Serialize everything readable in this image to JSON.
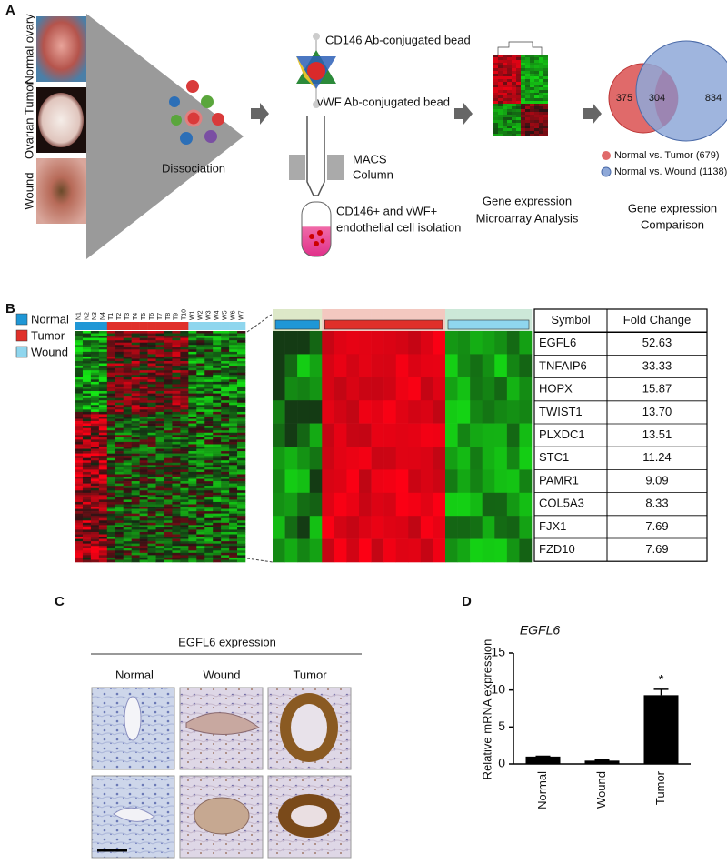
{
  "panel_labels": [
    "A",
    "B",
    "C",
    "D"
  ],
  "workflow": {
    "tissues": [
      "Normal ovary",
      "Ovarian Tumor",
      "Wound"
    ],
    "dissociation": "Dissociation",
    "cd146_bead": "CD146 Ab-conjugated bead",
    "vwf_bead": "vWF Ab-conjugated bead",
    "macs": [
      "MACS",
      "Column"
    ],
    "isolation": [
      "CD146+ and vWF+",
      "endothelial cell isolation"
    ],
    "microarray": [
      "Gene expression",
      "Microarray Analysis"
    ],
    "comparison": [
      "Gene expression",
      "Comparison"
    ]
  },
  "venn": {
    "tumor_only": "375",
    "overlap": "304",
    "wound_only": "834",
    "legend": [
      "Normal vs. Tumor (679)",
      "Normal vs. Wound (1138)"
    ]
  },
  "heatmap": {
    "legend": [
      "Normal",
      "Tumor",
      "Wound"
    ],
    "columns": [
      "N1",
      "N2",
      "N3",
      "N4",
      "T1",
      "T2",
      "T3",
      "T4",
      "T5",
      "T6",
      "T7",
      "T8",
      "T9",
      "T10",
      "W1",
      "W2",
      "W3",
      "W4",
      "W5",
      "W6",
      "W7"
    ]
  },
  "table": {
    "header": [
      "Symbol",
      "Fold Change"
    ],
    "rows": [
      [
        "EGFL6",
        "52.63"
      ],
      [
        "TNFAIP6",
        "33.33"
      ],
      [
        "HOPX",
        "15.87"
      ],
      [
        "TWIST1",
        "13.70"
      ],
      [
        "PLXDC1",
        "13.51"
      ],
      [
        "STC1",
        "11.24"
      ],
      [
        "PAMR1",
        "9.09"
      ],
      [
        "COL5A3",
        "8.33"
      ],
      [
        "FJX1",
        "7.69"
      ],
      [
        "FZD10",
        "7.69"
      ]
    ]
  },
  "ihc": {
    "title": "EGFL6 expression",
    "columns": [
      "Normal",
      "Wound",
      "Tumor"
    ]
  },
  "chart_data": {
    "type": "bar",
    "title": "EGFL6",
    "y_label": "Relative mRNA expression",
    "categories": [
      "Normal",
      "Wound",
      "Tumor"
    ],
    "values": [
      1.0,
      0.45,
      9.3
    ],
    "errors": [
      0.05,
      0.08,
      0.8
    ],
    "color": "#000000",
    "ylim": [
      0,
      15
    ],
    "yticks": [
      0,
      5,
      10,
      15
    ],
    "annotation": "*"
  }
}
